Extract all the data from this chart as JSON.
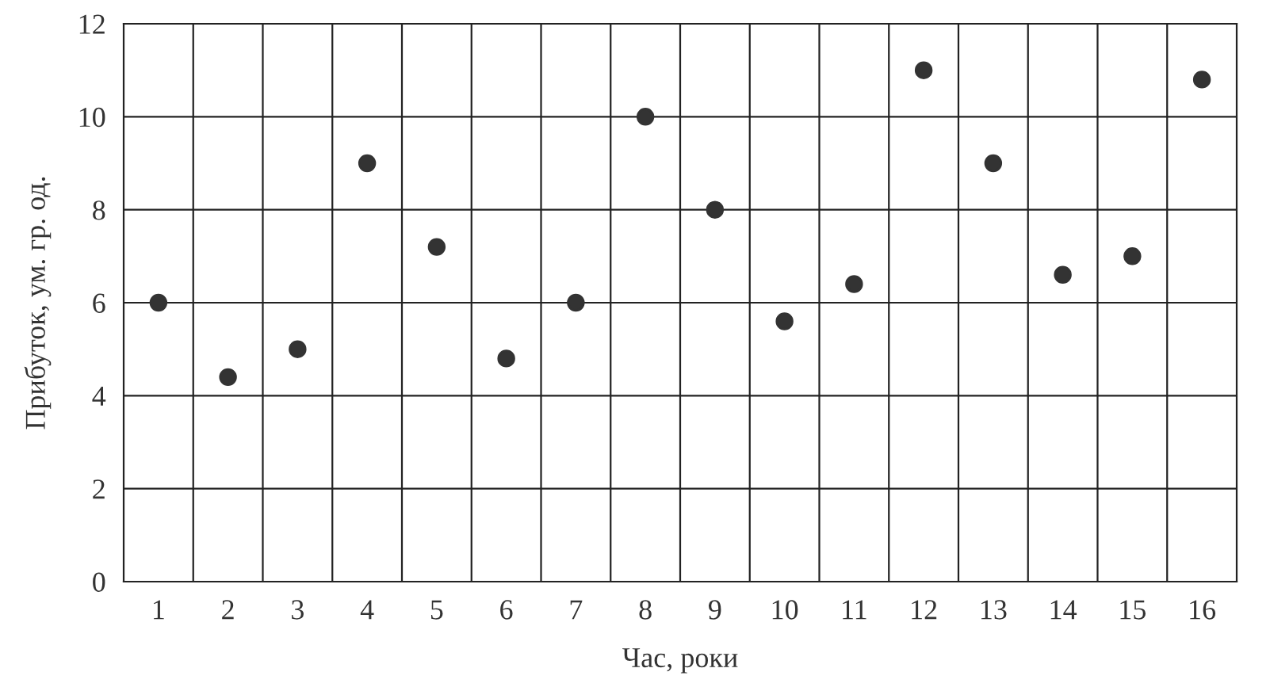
{
  "chart_data": {
    "type": "scatter",
    "xlabel": "Час, роки",
    "ylabel": "Прибуток, ум. гр. од.",
    "categories": [
      "1",
      "2",
      "3",
      "4",
      "5",
      "6",
      "7",
      "8",
      "9",
      "10",
      "11",
      "12",
      "13",
      "14",
      "15",
      "16"
    ],
    "series": [
      {
        "color": "#333333",
        "values": [
          6,
          4.4,
          5,
          9,
          7.2,
          4.8,
          6,
          10,
          8,
          5.6,
          6.4,
          11,
          9,
          6.6,
          7,
          10.8
        ]
      }
    ],
    "ylim": [
      0,
      12
    ],
    "yticks": [
      0,
      2,
      4,
      6,
      8,
      10,
      12
    ],
    "grid": true,
    "marker": "circle"
  }
}
